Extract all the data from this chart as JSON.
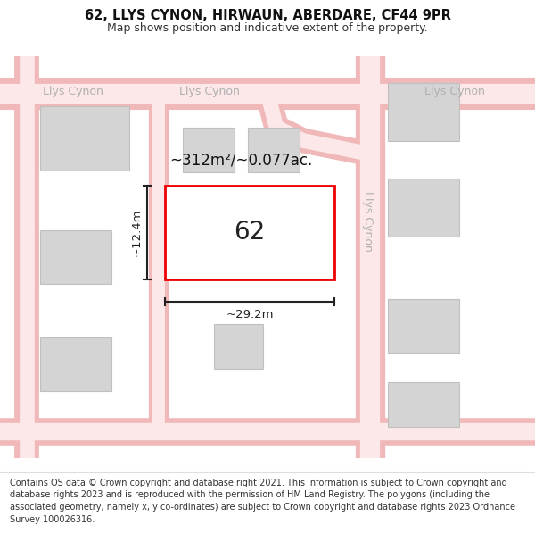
{
  "title": "62, LLYS CYNON, HIRWAUN, ABERDARE, CF44 9PR",
  "subtitle": "Map shows position and indicative extent of the property.",
  "footer": "Contains OS data © Crown copyright and database right 2021. This information is subject to Crown copyright and database rights 2023 and is reproduced with the permission of HM Land Registry. The polygons (including the associated geometry, namely x, y co-ordinates) are subject to Crown copyright and database rights 2023 Ordnance Survey 100026316.",
  "bg_color": "#ffffff",
  "map_bg": "#f0f0f0",
  "road_outer": "#f0b8b8",
  "road_inner": "#fce8e8",
  "building_fill": "#d4d4d4",
  "building_edge": "#c0c0c0",
  "highlight_fill": "#ffffff",
  "highlight_edge": "#ee0000",
  "highlight_lw": 2.0,
  "road_label_color": "#b0b0b0",
  "dim_color": "#222222",
  "area_text": "~312m²/~0.077ac.",
  "plot_label": "62",
  "dim_width": "~29.2m",
  "dim_height": "~12.4m",
  "title_fontsize": 10.5,
  "subtitle_fontsize": 9,
  "footer_fontsize": 7.0
}
